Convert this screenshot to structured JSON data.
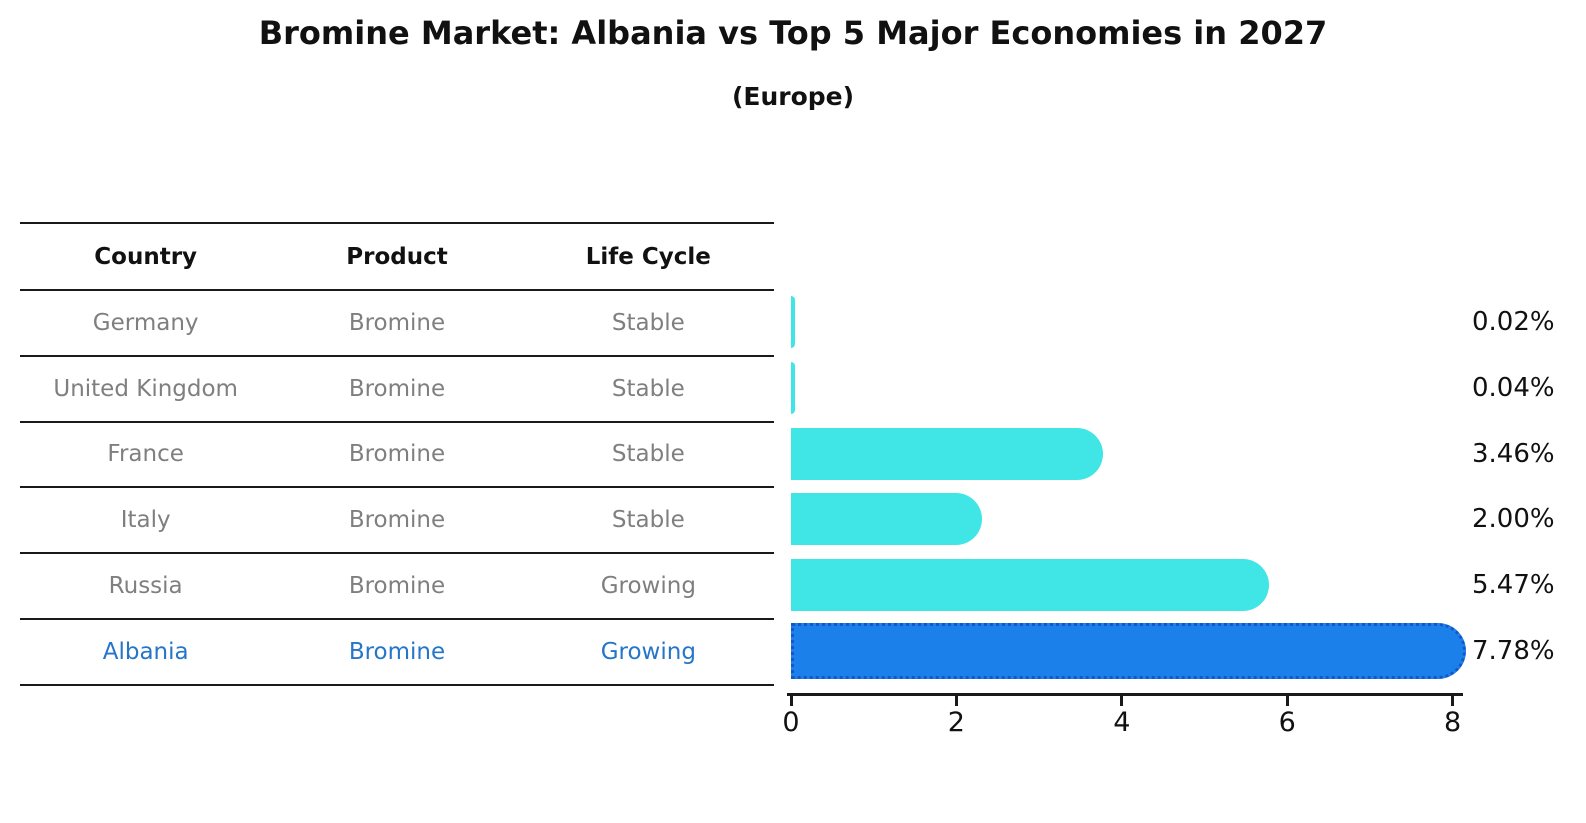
{
  "title": "Bromine Market: Albania vs Top 5 Major Economies in 2027",
  "subtitle": "(Europe)",
  "table": {
    "headers": [
      "Country",
      "Product",
      "Life Cycle"
    ],
    "rows": [
      {
        "country": "Germany",
        "product": "Bromine",
        "life_cycle": "Stable",
        "highlight": false
      },
      {
        "country": "United Kingdom",
        "product": "Bromine",
        "life_cycle": "Stable",
        "highlight": false
      },
      {
        "country": "France",
        "product": "Bromine",
        "life_cycle": "Stable",
        "highlight": false
      },
      {
        "country": "Italy",
        "product": "Bromine",
        "life_cycle": "Stable",
        "highlight": false
      },
      {
        "country": "Russia",
        "product": "Bromine",
        "life_cycle": "Growing",
        "highlight": false
      },
      {
        "country": "Albania",
        "product": "Bromine",
        "life_cycle": "Growing",
        "highlight": true
      }
    ]
  },
  "chart_data": {
    "type": "bar",
    "orientation": "horizontal",
    "title": "Bromine Market: Albania vs Top 5 Major Economies in 2027",
    "subtitle": "(Europe)",
    "categories": [
      "Germany",
      "United Kingdom",
      "France",
      "Italy",
      "Russia",
      "Albania"
    ],
    "values": [
      0.02,
      0.04,
      3.46,
      2.0,
      5.47,
      7.78
    ],
    "value_labels": [
      "0.02%",
      "0.04%",
      "3.46%",
      "2.00%",
      "5.47%",
      "7.78%"
    ],
    "highlight_category": "Albania",
    "xlim": [
      0,
      8
    ],
    "x_ticks": [
      "0",
      "2",
      "4",
      "6",
      "8"
    ],
    "grid": false,
    "legend": "none"
  },
  "colors": {
    "bar": "#40E6E6",
    "highlight_bar": "#1C80EA",
    "highlight_border": "#1557C8",
    "muted_text": "#7f7f7f",
    "highlight_text": "#2576C9",
    "axis": "#1a1a1a",
    "label": "#111111"
  }
}
